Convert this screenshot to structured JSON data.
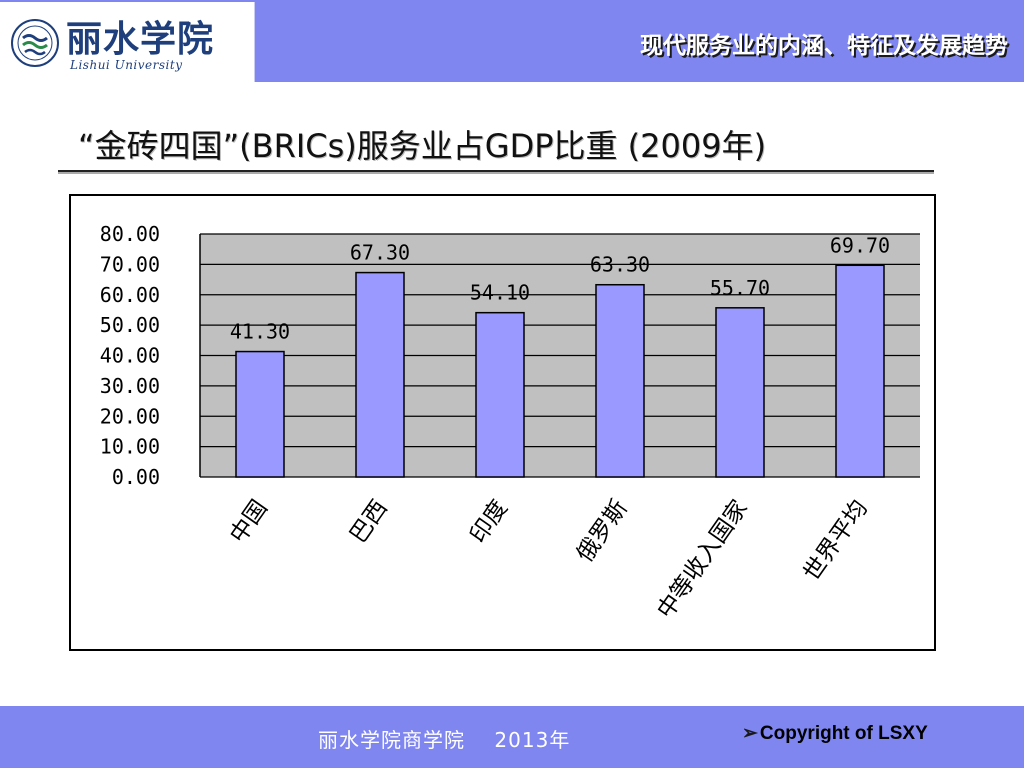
{
  "header": {
    "logo_cn": "丽水学院",
    "logo_en": "Lishui University",
    "title": "现代服务业的内涵、特征及发展趋势"
  },
  "slide": {
    "title": "“金砖四国”(BRICs)服务业占GDP比重 (2009年)"
  },
  "chart_data": {
    "type": "bar",
    "categories": [
      "中国",
      "巴西",
      "印度",
      "俄罗斯",
      "中等收入国家",
      "世界平均"
    ],
    "values": [
      41.3,
      67.3,
      54.1,
      63.3,
      55.7,
      69.7
    ],
    "value_labels": [
      "41.30",
      "67.30",
      "54.10",
      "63.30",
      "55.70",
      "69.70"
    ],
    "ylim": [
      0,
      80
    ],
    "yticks": [
      "80.00",
      "70.00",
      "60.00",
      "50.00",
      "40.00",
      "30.00",
      "20.00",
      "10.00",
      "0.00"
    ],
    "title": "",
    "xlabel": "",
    "ylabel": "",
    "grid": true,
    "legend": "none",
    "colors": {
      "bar": "#9999ff",
      "plot_bg": "#c0c0c0",
      "grid": "#000000"
    }
  },
  "footer": {
    "text": "丽水学院商学院    2013年",
    "copyright": "Copyright of LSXY"
  },
  "theme": {
    "band": "#7f86f0"
  }
}
